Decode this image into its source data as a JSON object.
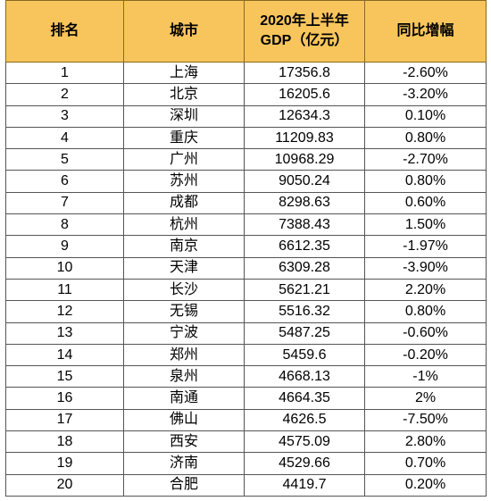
{
  "table": {
    "headers": [
      "排名",
      "城市",
      "2020年上半年GDP（亿元）",
      "同比增幅"
    ],
    "rows": [
      [
        "1",
        "上海",
        "17356.8",
        "-2.60%"
      ],
      [
        "2",
        "北京",
        "16205.6",
        "-3.20%"
      ],
      [
        "3",
        "深圳",
        "12634.3",
        "0.10%"
      ],
      [
        "4",
        "重庆",
        "11209.83",
        "0.80%"
      ],
      [
        "5",
        "广州",
        "10968.29",
        "-2.70%"
      ],
      [
        "6",
        "苏州",
        "9050.24",
        "0.80%"
      ],
      [
        "7",
        "成都",
        "8298.63",
        "0.60%"
      ],
      [
        "8",
        "杭州",
        "7388.43",
        "1.50%"
      ],
      [
        "9",
        "南京",
        "6612.35",
        "-1.97%"
      ],
      [
        "10",
        "天津",
        "6309.28",
        "-3.90%"
      ],
      [
        "11",
        "长沙",
        "5621.21",
        "2.20%"
      ],
      [
        "12",
        "无锡",
        "5516.32",
        "0.80%"
      ],
      [
        "13",
        "宁波",
        "5487.25",
        "-0.60%"
      ],
      [
        "14",
        "郑州",
        "5459.6",
        "-0.20%"
      ],
      [
        "15",
        "泉州",
        "4668.13",
        "-1%"
      ],
      [
        "16",
        "南通",
        "4664.35",
        "2%"
      ],
      [
        "17",
        "佛山",
        "4626.5",
        "-7.50%"
      ],
      [
        "18",
        "西安",
        "4575.09",
        "2.80%"
      ],
      [
        "19",
        "济南",
        "4529.66",
        "0.70%"
      ],
      [
        "20",
        "合肥",
        "4419.7",
        "0.20%"
      ]
    ]
  },
  "colors": {
    "header_background": "#f7c55c",
    "grid_line": "#555555",
    "text": "#000000"
  }
}
